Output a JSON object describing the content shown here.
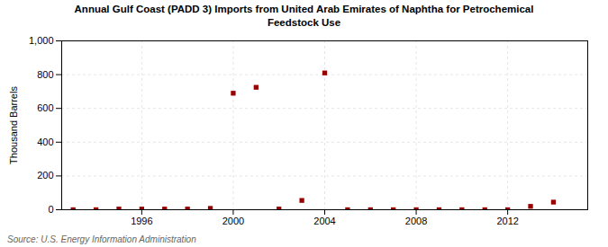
{
  "chart_data": {
    "type": "scatter",
    "title": "Annual Gulf Coast (PADD 3) Imports from United Arab Emirates of Naphtha for Petrochemical\nFeedstock Use",
    "ylabel": "Thousand Barrels",
    "source": "Source: U.S. Energy Information Administration",
    "x": [
      1993,
      1994,
      1995,
      1996,
      1997,
      1998,
      1999,
      2000,
      2001,
      2002,
      2003,
      2004,
      2005,
      2006,
      2007,
      2008,
      2009,
      2010,
      2011,
      2012,
      2013,
      2014
    ],
    "values": [
      0,
      0,
      4,
      4,
      4,
      4,
      8,
      690,
      725,
      4,
      55,
      810,
      0,
      0,
      0,
      0,
      0,
      0,
      0,
      0,
      20,
      45
    ],
    "color": "#990000",
    "marker": "square",
    "xlim": [
      1992.5,
      2015.5
    ],
    "xticks": [
      1996,
      2000,
      2004,
      2008,
      2012
    ],
    "ylim": [
      0,
      1000
    ],
    "yticks": [
      0,
      200,
      400,
      600,
      800,
      {
        "value": 1000,
        "label": "1,000"
      }
    ],
    "grid": true
  }
}
